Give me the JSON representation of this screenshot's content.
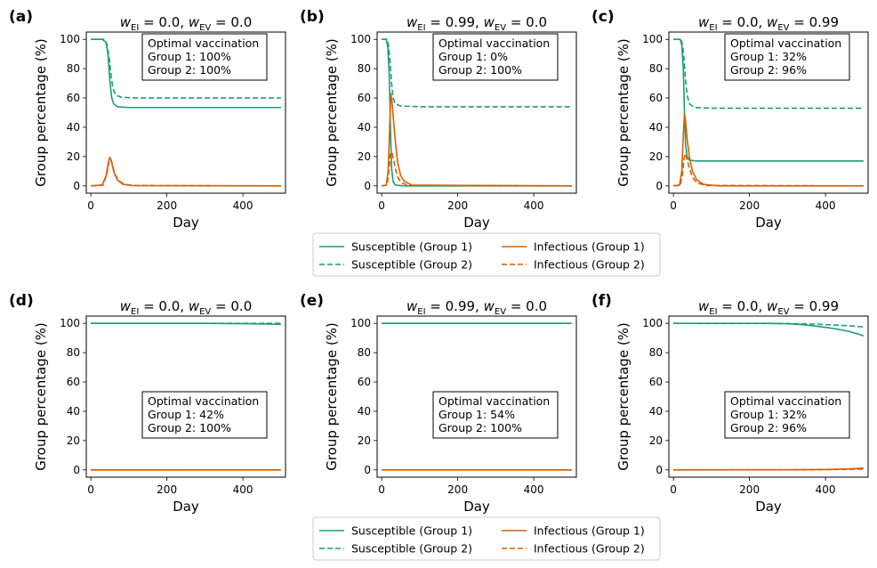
{
  "colors": {
    "susceptible": "#1b9e77",
    "infectious": "#d95f02"
  },
  "common": {
    "xlabel": "Day",
    "ylabel": "Group percentage (%)",
    "x_ticks": [
      "0",
      "200",
      "400"
    ],
    "y_ticks": [
      "0",
      "20",
      "40",
      "60",
      "80",
      "100"
    ],
    "box_title": "Optimal vaccination"
  },
  "legend": {
    "entries": [
      {
        "label": "Susceptible (Group 1)",
        "series": "susceptible",
        "style": "solid"
      },
      {
        "label": "Susceptible (Group 2)",
        "series": "susceptible",
        "style": "dashed"
      },
      {
        "label": "Infectious (Group 1)",
        "series": "infectious",
        "style": "solid"
      },
      {
        "label": "Infectious (Group 2)",
        "series": "infectious",
        "style": "dashed"
      }
    ]
  },
  "chart_data": [
    {
      "type": "line",
      "panel_label": "(a)",
      "w_EI": "0.0",
      "w_EV": "0.0",
      "xlim": [
        -12,
        512
      ],
      "ylim": [
        -5,
        105
      ],
      "box_lines": [
        "Group 1: 100%",
        "Group 2: 100%"
      ],
      "series": [
        {
          "name": "Susceptible (Group 1)",
          "kind": "susceptible",
          "style": "solid",
          "points": [
            [
              0,
              100
            ],
            [
              30,
              100
            ],
            [
              40,
              98
            ],
            [
              45,
              90
            ],
            [
              50,
              72
            ],
            [
              55,
              60
            ],
            [
              60,
              56
            ],
            [
              70,
              54
            ],
            [
              100,
              53.5
            ],
            [
              500,
              53.5
            ]
          ]
        },
        {
          "name": "Susceptible (Group 2)",
          "kind": "susceptible",
          "style": "dashed",
          "points": [
            [
              0,
              100
            ],
            [
              35,
              100
            ],
            [
              42,
              97
            ],
            [
              48,
              88
            ],
            [
              53,
              76
            ],
            [
              58,
              67
            ],
            [
              65,
              62
            ],
            [
              80,
              60.5
            ],
            [
              120,
              60
            ],
            [
              500,
              60
            ]
          ]
        },
        {
          "name": "Infectious (Group 1)",
          "kind": "infectious",
          "style": "solid",
          "points": [
            [
              0,
              0
            ],
            [
              30,
              0.5
            ],
            [
              40,
              7
            ],
            [
              46,
              16
            ],
            [
              50,
              19.5
            ],
            [
              54,
              17
            ],
            [
              60,
              10
            ],
            [
              70,
              4
            ],
            [
              85,
              1
            ],
            [
              110,
              0.2
            ],
            [
              500,
              0
            ]
          ]
        },
        {
          "name": "Infectious (Group 2)",
          "kind": "infectious",
          "style": "dashed",
          "points": [
            [
              0,
              0
            ],
            [
              32,
              0.5
            ],
            [
              42,
              8
            ],
            [
              48,
              17
            ],
            [
              52,
              18.5
            ],
            [
              56,
              15
            ],
            [
              62,
              9
            ],
            [
              72,
              3.5
            ],
            [
              90,
              1
            ],
            [
              115,
              0.2
            ],
            [
              500,
              0
            ]
          ]
        }
      ]
    },
    {
      "type": "line",
      "panel_label": "(b)",
      "w_EI": "0.99",
      "w_EV": "0.0",
      "xlim": [
        -12,
        512
      ],
      "ylim": [
        -5,
        105
      ],
      "box_lines": [
        "Group 1: 0%",
        "Group 2: 100%"
      ],
      "series": [
        {
          "name": "Susceptible (Group 1)",
          "kind": "susceptible",
          "style": "solid",
          "points": [
            [
              0,
              100
            ],
            [
              12,
              100
            ],
            [
              16,
              95
            ],
            [
              20,
              75
            ],
            [
              23,
              40
            ],
            [
              26,
              12
            ],
            [
              30,
              3
            ],
            [
              36,
              0.5
            ],
            [
              60,
              0
            ],
            [
              500,
              0
            ]
          ]
        },
        {
          "name": "Susceptible (Group 2)",
          "kind": "susceptible",
          "style": "dashed",
          "points": [
            [
              0,
              100
            ],
            [
              14,
              100
            ],
            [
              18,
              96
            ],
            [
              22,
              85
            ],
            [
              26,
              70
            ],
            [
              30,
              60
            ],
            [
              36,
              56
            ],
            [
              50,
              54.5
            ],
            [
              100,
              54
            ],
            [
              500,
              54
            ]
          ]
        },
        {
          "name": "Infectious (Group 1)",
          "kind": "infectious",
          "style": "solid",
          "points": [
            [
              0,
              0
            ],
            [
              12,
              0.5
            ],
            [
              17,
              10
            ],
            [
              21,
              40
            ],
            [
              24,
              63
            ],
            [
              27,
              58
            ],
            [
              31,
              45
            ],
            [
              36,
              30
            ],
            [
              42,
              16
            ],
            [
              50,
              7
            ],
            [
              60,
              3
            ],
            [
              80,
              0.5
            ],
            [
              500,
              0
            ]
          ]
        },
        {
          "name": "Infectious (Group 2)",
          "kind": "infectious",
          "style": "dashed",
          "points": [
            [
              0,
              0
            ],
            [
              14,
              0.5
            ],
            [
              19,
              10
            ],
            [
              23,
              22
            ],
            [
              27,
              23
            ],
            [
              31,
              18
            ],
            [
              36,
              12
            ],
            [
              42,
              6
            ],
            [
              52,
              2
            ],
            [
              70,
              0.3
            ],
            [
              500,
              0
            ]
          ]
        }
      ]
    },
    {
      "type": "line",
      "panel_label": "(c)",
      "w_EI": "0.0",
      "w_EV": "0.99",
      "xlim": [
        -12,
        512
      ],
      "ylim": [
        -5,
        105
      ],
      "box_lines": [
        "Group 1: 32%",
        "Group 2: 96%"
      ],
      "series": [
        {
          "name": "Susceptible (Group 1)",
          "kind": "susceptible",
          "style": "solid",
          "points": [
            [
              0,
              100
            ],
            [
              18,
              100
            ],
            [
              22,
              96
            ],
            [
              26,
              80
            ],
            [
              29,
              50
            ],
            [
              32,
              28
            ],
            [
              36,
              20
            ],
            [
              42,
              17.5
            ],
            [
              60,
              17
            ],
            [
              500,
              17
            ]
          ]
        },
        {
          "name": "Susceptible (Group 2)",
          "kind": "susceptible",
          "style": "dashed",
          "points": [
            [
              0,
              100
            ],
            [
              20,
              100
            ],
            [
              24,
              96
            ],
            [
              28,
              86
            ],
            [
              32,
              72
            ],
            [
              36,
              62
            ],
            [
              42,
              56
            ],
            [
              55,
              53.5
            ],
            [
              100,
              53
            ],
            [
              500,
              53
            ]
          ]
        },
        {
          "name": "Infectious (Group 1)",
          "kind": "infectious",
          "style": "solid",
          "points": [
            [
              0,
              0
            ],
            [
              16,
              0.5
            ],
            [
              22,
              10
            ],
            [
              26,
              35
            ],
            [
              29,
              49
            ],
            [
              32,
              44
            ],
            [
              36,
              32
            ],
            [
              42,
              20
            ],
            [
              50,
              10
            ],
            [
              62,
              4
            ],
            [
              80,
              1
            ],
            [
              120,
              0
            ],
            [
              500,
              0
            ]
          ]
        },
        {
          "name": "Infectious (Group 2)",
          "kind": "infectious",
          "style": "dashed",
          "points": [
            [
              0,
              0
            ],
            [
              18,
              0.5
            ],
            [
              24,
              8
            ],
            [
              28,
              19
            ],
            [
              32,
              22
            ],
            [
              36,
              18
            ],
            [
              42,
              12
            ],
            [
              50,
              6
            ],
            [
              62,
              2
            ],
            [
              85,
              0.3
            ],
            [
              500,
              0
            ]
          ]
        }
      ]
    },
    {
      "type": "line",
      "panel_label": "(d)",
      "w_EI": "0.0",
      "w_EV": "0.0",
      "xlim": [
        -12,
        512
      ],
      "ylim": [
        -5,
        105
      ],
      "box_lines": [
        "Group 1: 42%",
        "Group 2: 100%"
      ],
      "series": [
        {
          "name": "Susceptible (Group 1)",
          "kind": "susceptible",
          "style": "solid",
          "points": [
            [
              0,
              100
            ],
            [
              300,
              100
            ],
            [
              400,
              99.8
            ],
            [
              460,
              99.6
            ],
            [
              500,
              99.3
            ]
          ]
        },
        {
          "name": "Susceptible (Group 2)",
          "kind": "susceptible",
          "style": "dashed",
          "points": [
            [
              0,
              100
            ],
            [
              500,
              100
            ]
          ]
        },
        {
          "name": "Infectious (Group 1)",
          "kind": "infectious",
          "style": "solid",
          "points": [
            [
              0,
              0
            ],
            [
              500,
              0
            ]
          ]
        },
        {
          "name": "Infectious (Group 2)",
          "kind": "infectious",
          "style": "dashed",
          "points": [
            [
              0,
              0
            ],
            [
              500,
              0
            ]
          ]
        }
      ]
    },
    {
      "type": "line",
      "panel_label": "(e)",
      "w_EI": "0.99",
      "w_EV": "0.0",
      "xlim": [
        -12,
        512
      ],
      "ylim": [
        -5,
        105
      ],
      "box_lines": [
        "Group 1: 54%",
        "Group 2: 100%"
      ],
      "series": [
        {
          "name": "Susceptible (Group 1)",
          "kind": "susceptible",
          "style": "solid",
          "points": [
            [
              0,
              100
            ],
            [
              500,
              100
            ]
          ]
        },
        {
          "name": "Susceptible (Group 2)",
          "kind": "susceptible",
          "style": "dashed",
          "points": [
            [
              0,
              100
            ],
            [
              500,
              100
            ]
          ]
        },
        {
          "name": "Infectious (Group 1)",
          "kind": "infectious",
          "style": "solid",
          "points": [
            [
              0,
              0
            ],
            [
              500,
              0
            ]
          ]
        },
        {
          "name": "Infectious (Group 2)",
          "kind": "infectious",
          "style": "dashed",
          "points": [
            [
              0,
              0
            ],
            [
              500,
              0
            ]
          ]
        }
      ]
    },
    {
      "type": "line",
      "panel_label": "(f)",
      "w_EI": "0.0",
      "w_EV": "0.99",
      "xlim": [
        -12,
        512
      ],
      "ylim": [
        -5,
        105
      ],
      "box_lines": [
        "Group 1: 32%",
        "Group 2: 96%"
      ],
      "series": [
        {
          "name": "Susceptible (Group 1)",
          "kind": "susceptible",
          "style": "solid",
          "points": [
            [
              0,
              100
            ],
            [
              250,
              100
            ],
            [
              300,
              99.7
            ],
            [
              340,
              99.1
            ],
            [
              370,
              98.3
            ],
            [
              400,
              97.3
            ],
            [
              430,
              96.1
            ],
            [
              460,
              94.6
            ],
            [
              480,
              93.2
            ],
            [
              500,
              91.5
            ]
          ]
        },
        {
          "name": "Susceptible (Group 2)",
          "kind": "susceptible",
          "style": "dashed",
          "points": [
            [
              0,
              100
            ],
            [
              300,
              99.9
            ],
            [
              380,
              99.4
            ],
            [
              430,
              98.8
            ],
            [
              470,
              98.2
            ],
            [
              500,
              97.6
            ]
          ]
        },
        {
          "name": "Infectious (Group 1)",
          "kind": "infectious",
          "style": "solid",
          "points": [
            [
              0,
              0
            ],
            [
              300,
              0.05
            ],
            [
              400,
              0.3
            ],
            [
              450,
              0.6
            ],
            [
              480,
              0.9
            ],
            [
              500,
              1.2
            ]
          ]
        },
        {
          "name": "Infectious (Group 2)",
          "kind": "infectious",
          "style": "dashed",
          "points": [
            [
              0,
              0
            ],
            [
              350,
              0.05
            ],
            [
              450,
              0.3
            ],
            [
              500,
              0.5
            ]
          ]
        }
      ]
    }
  ]
}
